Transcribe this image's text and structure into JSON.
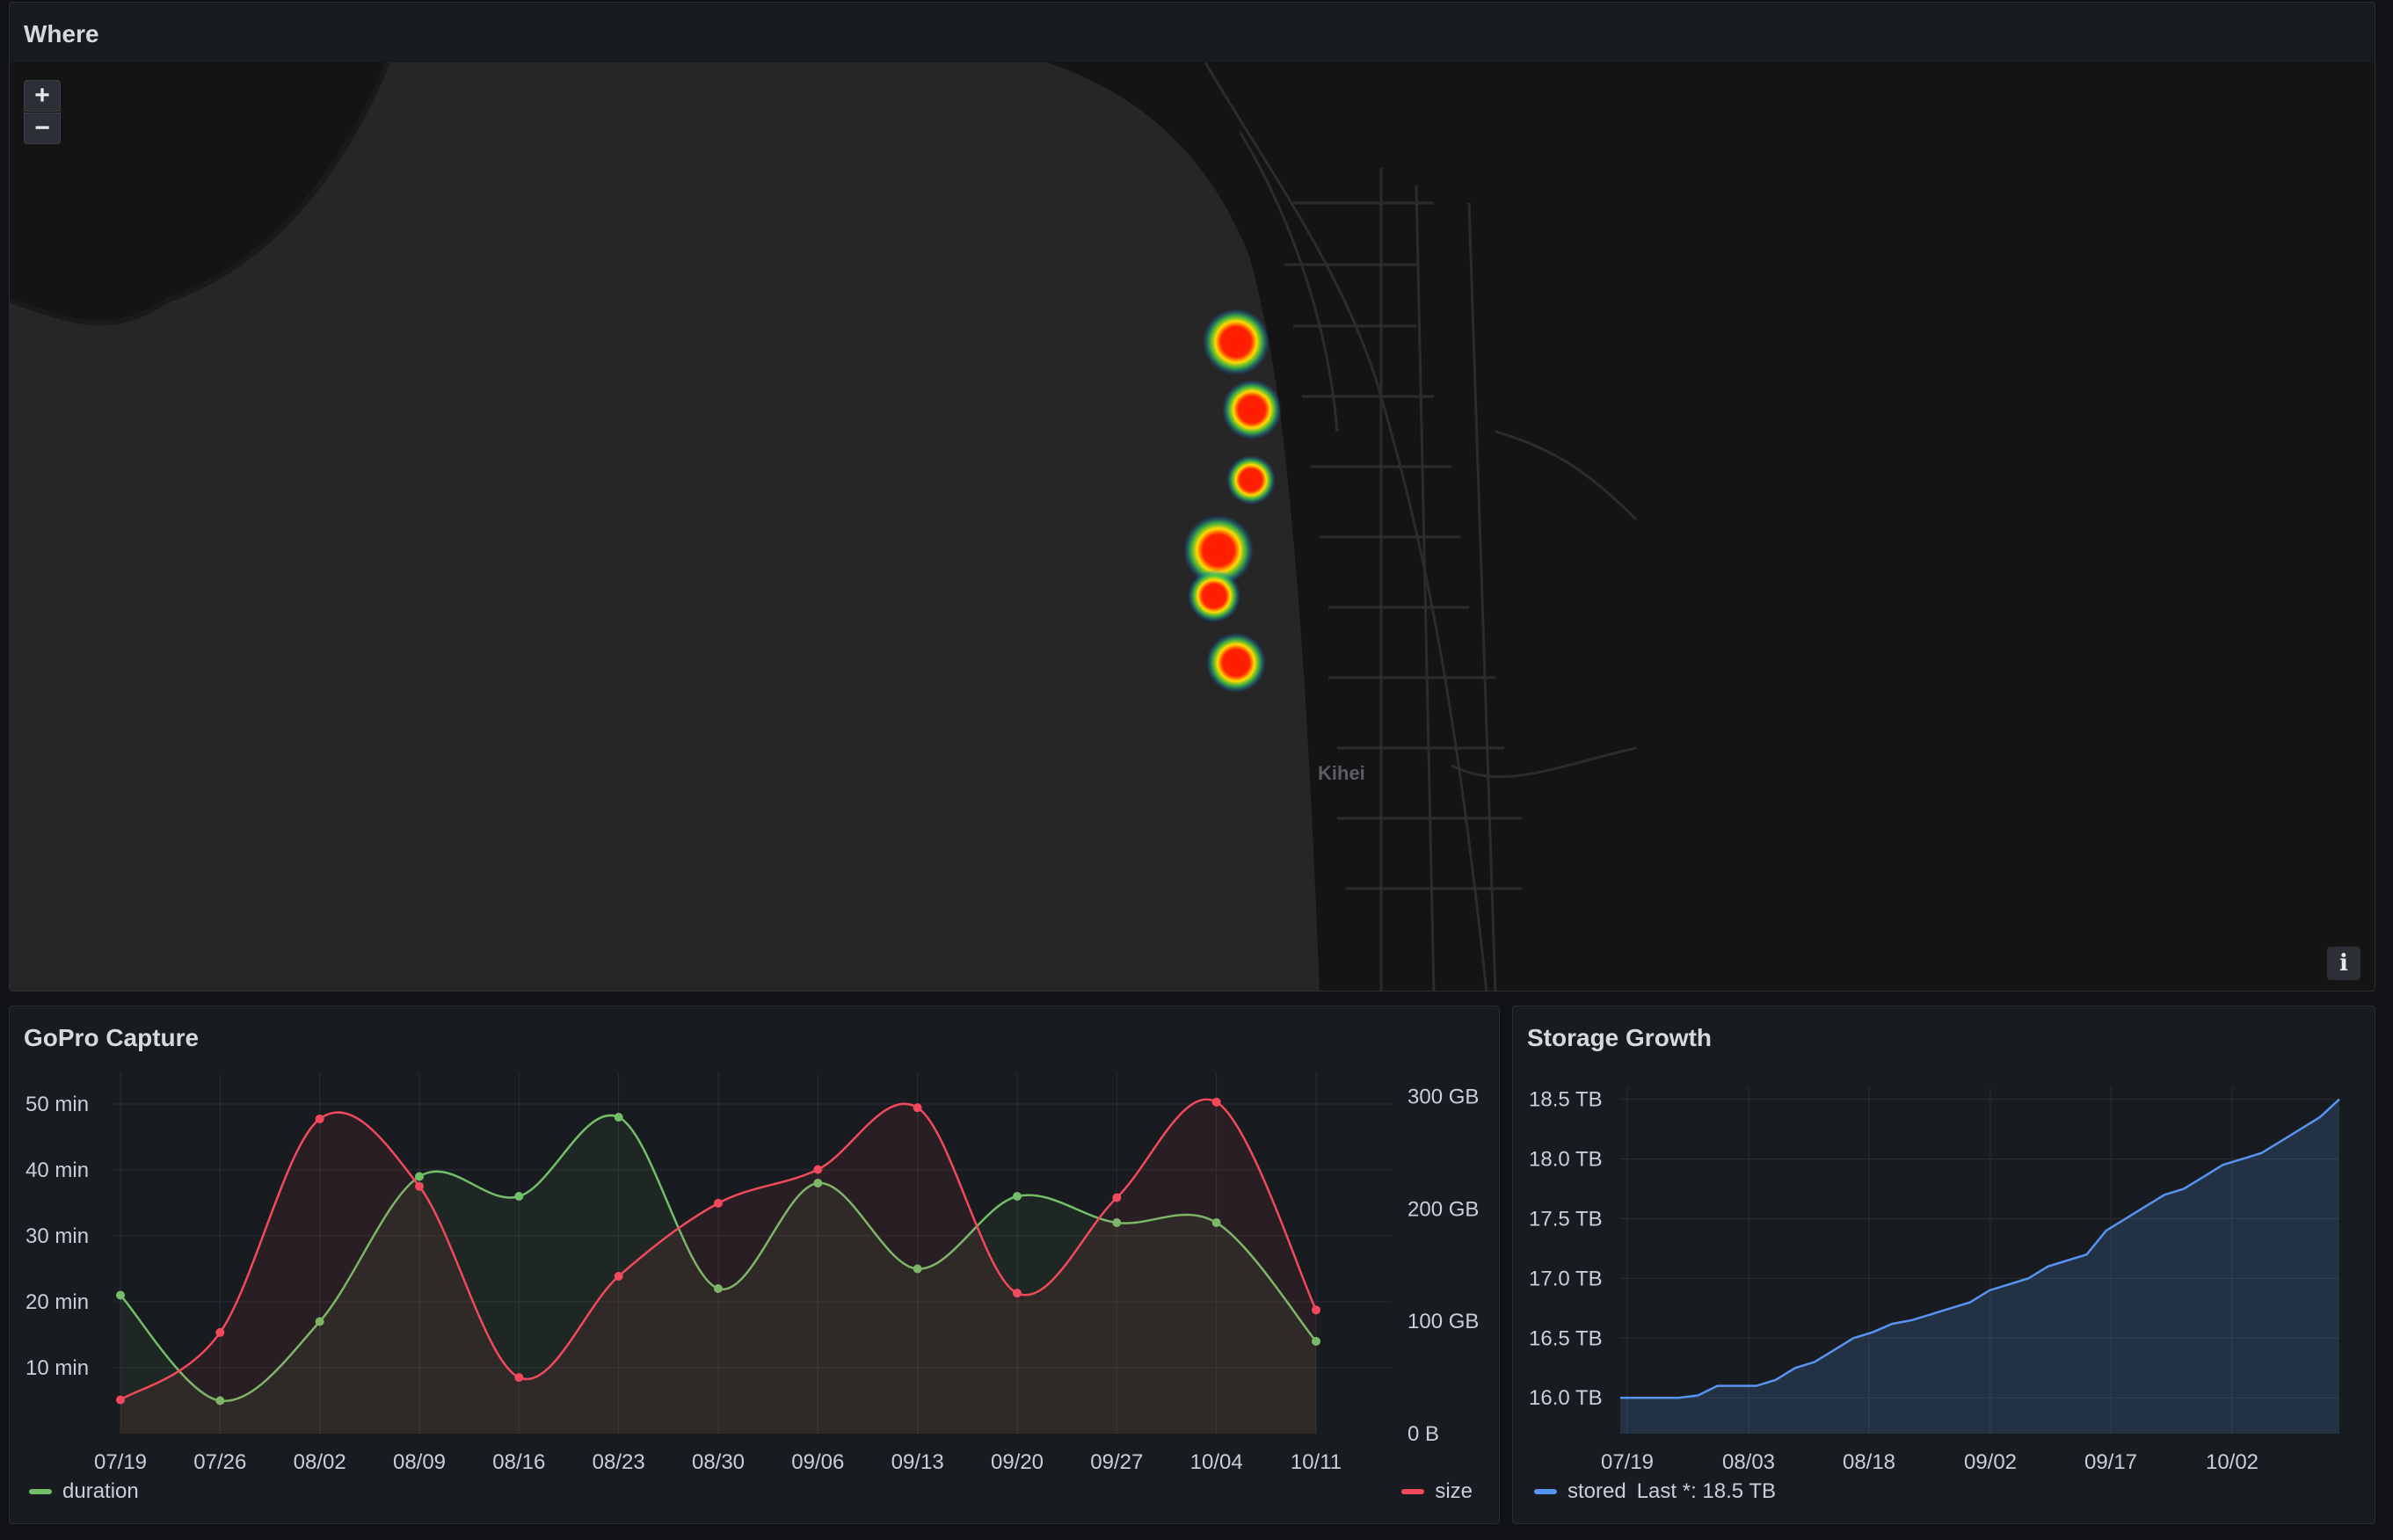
{
  "colors": {
    "duration": "#73bf69",
    "size": "#f2495c",
    "stored": "#5794f2",
    "grid": "#2a2d33",
    "axis_text": "#ccccdc"
  },
  "map_panel": {
    "title": "Where",
    "zoom_in_label": "+",
    "zoom_out_label": "−",
    "info_label": "i",
    "town_label": "Kihei",
    "heat_spots": [
      {
        "intensity": 1.0
      },
      {
        "intensity": 0.9
      },
      {
        "intensity": 0.6
      },
      {
        "intensity": 1.0
      },
      {
        "intensity": 0.7
      },
      {
        "intensity": 0.9
      }
    ]
  },
  "capture_panel": {
    "title": "GoPro Capture",
    "legend": {
      "duration": "duration",
      "size": "size"
    }
  },
  "storage_panel": {
    "title": "Storage Growth",
    "legend": {
      "series": "stored",
      "last": "Last *: 18.5 TB"
    }
  },
  "chart_data": [
    {
      "type": "line",
      "title": "GoPro Capture",
      "categories": [
        "07/19",
        "07/26",
        "08/02",
        "08/09",
        "08/16",
        "08/23",
        "08/30",
        "09/06",
        "09/13",
        "09/20",
        "09/27",
        "10/04",
        "10/11"
      ],
      "series": [
        {
          "name": "duration",
          "axis": "left",
          "unit": "min",
          "values": [
            21,
            5,
            17,
            39,
            36,
            48,
            22,
            38,
            25,
            36,
            32,
            32,
            14
          ]
        },
        {
          "name": "size",
          "axis": "right",
          "unit": "GB",
          "values": [
            30,
            90,
            280,
            220,
            50,
            140,
            205,
            235,
            290,
            125,
            210,
            295,
            110
          ]
        }
      ],
      "y_left": {
        "ticks": [
          "10 min",
          "20 min",
          "30 min",
          "40 min",
          "50 min"
        ],
        "range": [
          0,
          52
        ]
      },
      "y_right": {
        "ticks": [
          "0 B",
          "100 GB",
          "200 GB",
          "300 GB"
        ],
        "range": [
          0,
          305
        ]
      },
      "grid": true,
      "legend_position": "bottom"
    },
    {
      "type": "area",
      "title": "Storage Growth",
      "x_ticks": [
        "07/19",
        "08/03",
        "08/18",
        "09/02",
        "09/17",
        "10/02"
      ],
      "series": [
        {
          "name": "stored",
          "unit": "TB",
          "values": [
            16.0,
            16.0,
            16.0,
            16.0,
            16.02,
            16.1,
            16.1,
            16.1,
            16.15,
            16.25,
            16.3,
            16.4,
            16.5,
            16.55,
            16.62,
            16.65,
            16.7,
            16.75,
            16.8,
            16.9,
            16.95,
            17.0,
            17.1,
            17.15,
            17.2,
            17.4,
            17.5,
            17.6,
            17.7,
            17.75,
            17.85,
            17.95,
            18.0,
            18.05,
            18.15,
            18.25,
            18.35,
            18.5
          ]
        }
      ],
      "y_ticks": [
        "16.0 TB",
        "16.5 TB",
        "17.0 TB",
        "17.5 TB",
        "18.0 TB",
        "18.5 TB"
      ],
      "y_range": [
        15.7,
        18.6
      ],
      "grid": true,
      "legend_position": "bottom-left"
    }
  ]
}
